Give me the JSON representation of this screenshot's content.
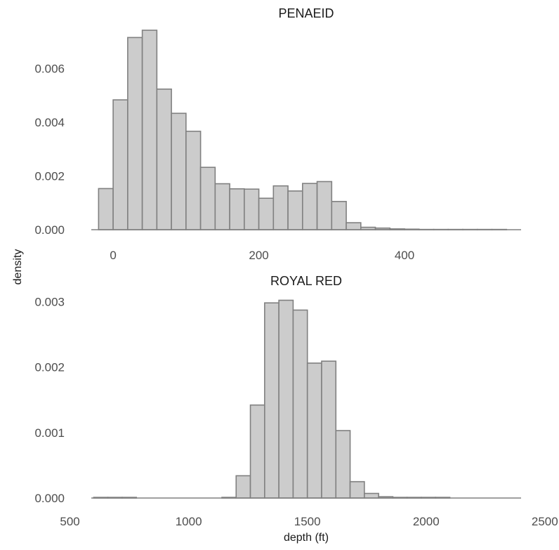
{
  "chart_data": {
    "type": "histogram",
    "shared_xlabel": "",
    "shared_ylabel": "density",
    "facets": [
      {
        "title": "PENAEID",
        "xlabel": "depth (ft)",
        "ylabel": "density",
        "bin_width": 20,
        "xlim": [
          -30,
          560
        ],
        "ylim": [
          0,
          0.0075
        ],
        "x_ticks": [
          0,
          200,
          400
        ],
        "x_tick_labels": [
          "0",
          "200",
          "400"
        ],
        "y_ticks": [
          0.0,
          0.002,
          0.004,
          0.006
        ],
        "y_tick_labels": [
          "0.000",
          "0.002",
          "0.004",
          "0.006"
        ],
        "bins": [
          {
            "x0": -20,
            "x1": 0,
            "density": 0.00153
          },
          {
            "x0": 0,
            "x1": 20,
            "density": 0.00483
          },
          {
            "x0": 20,
            "x1": 40,
            "density": 0.00715
          },
          {
            "x0": 40,
            "x1": 60,
            "density": 0.00742
          },
          {
            "x0": 60,
            "x1": 80,
            "density": 0.00523
          },
          {
            "x0": 80,
            "x1": 100,
            "density": 0.00433
          },
          {
            "x0": 100,
            "x1": 120,
            "density": 0.00366
          },
          {
            "x0": 120,
            "x1": 140,
            "density": 0.00232
          },
          {
            "x0": 140,
            "x1": 160,
            "density": 0.00171
          },
          {
            "x0": 160,
            "x1": 180,
            "density": 0.00152
          },
          {
            "x0": 180,
            "x1": 200,
            "density": 0.00151
          },
          {
            "x0": 200,
            "x1": 220,
            "density": 0.00117
          },
          {
            "x0": 220,
            "x1": 240,
            "density": 0.00163
          },
          {
            "x0": 240,
            "x1": 260,
            "density": 0.00144
          },
          {
            "x0": 260,
            "x1": 280,
            "density": 0.00172
          },
          {
            "x0": 280,
            "x1": 300,
            "density": 0.00179
          },
          {
            "x0": 300,
            "x1": 320,
            "density": 0.00105
          },
          {
            "x0": 320,
            "x1": 340,
            "density": 0.00026
          },
          {
            "x0": 340,
            "x1": 360,
            "density": 9e-05
          },
          {
            "x0": 360,
            "x1": 380,
            "density": 6e-05
          },
          {
            "x0": 380,
            "x1": 400,
            "density": 3e-05
          },
          {
            "x0": 400,
            "x1": 420,
            "density": 2e-05
          },
          {
            "x0": 420,
            "x1": 440,
            "density": 1e-05
          },
          {
            "x0": 440,
            "x1": 460,
            "density": 1e-05
          },
          {
            "x0": 460,
            "x1": 480,
            "density": 1e-05
          },
          {
            "x0": 480,
            "x1": 500,
            "density": 1e-05
          },
          {
            "x0": 500,
            "x1": 520,
            "density": 1e-05
          },
          {
            "x0": 520,
            "x1": 540,
            "density": 1e-05
          }
        ]
      },
      {
        "title": "ROYAL RED",
        "xlabel": "depth (ft)",
        "ylabel": "density",
        "bin_width": 60,
        "xlim": [
          590,
          2400
        ],
        "ylim": [
          0,
          0.0031
        ],
        "x_ticks": [
          500,
          1000,
          1500,
          2000,
          2500
        ],
        "x_tick_labels": [
          "500",
          "1000",
          "1500",
          "2000",
          "2500"
        ],
        "y_ticks": [
          0.0,
          0.001,
          0.002,
          0.003
        ],
        "y_tick_labels": [
          "0.000",
          "0.001",
          "0.002",
          "0.003"
        ],
        "bins": [
          {
            "x0": 600,
            "x1": 660,
            "density": 1e-05
          },
          {
            "x0": 660,
            "x1": 720,
            "density": 1e-05
          },
          {
            "x0": 720,
            "x1": 780,
            "density": 1e-05
          },
          {
            "x0": 1140,
            "x1": 1200,
            "density": 1e-05
          },
          {
            "x0": 1200,
            "x1": 1260,
            "density": 0.00034
          },
          {
            "x0": 1260,
            "x1": 1320,
            "density": 0.00142
          },
          {
            "x0": 1320,
            "x1": 1380,
            "density": 0.00298
          },
          {
            "x0": 1380,
            "x1": 1440,
            "density": 0.00302
          },
          {
            "x0": 1440,
            "x1": 1500,
            "density": 0.00287
          },
          {
            "x0": 1500,
            "x1": 1560,
            "density": 0.00206
          },
          {
            "x0": 1560,
            "x1": 1620,
            "density": 0.00209
          },
          {
            "x0": 1620,
            "x1": 1680,
            "density": 0.00103
          },
          {
            "x0": 1680,
            "x1": 1740,
            "density": 0.00025
          },
          {
            "x0": 1740,
            "x1": 1800,
            "density": 7e-05
          },
          {
            "x0": 1800,
            "x1": 1860,
            "density": 2e-05
          },
          {
            "x0": 1860,
            "x1": 1920,
            "density": 1e-05
          },
          {
            "x0": 1920,
            "x1": 1980,
            "density": 1e-05
          },
          {
            "x0": 1980,
            "x1": 2040,
            "density": 1e-05
          },
          {
            "x0": 2040,
            "x1": 2100,
            "density": 1e-05
          }
        ]
      }
    ],
    "grid": false,
    "legend": "none",
    "colors": {
      "bar_fill": "#cccccc",
      "bar_outline": "#808080",
      "text": "#1a1a1a",
      "tick_text": "#4d4d4d"
    }
  }
}
